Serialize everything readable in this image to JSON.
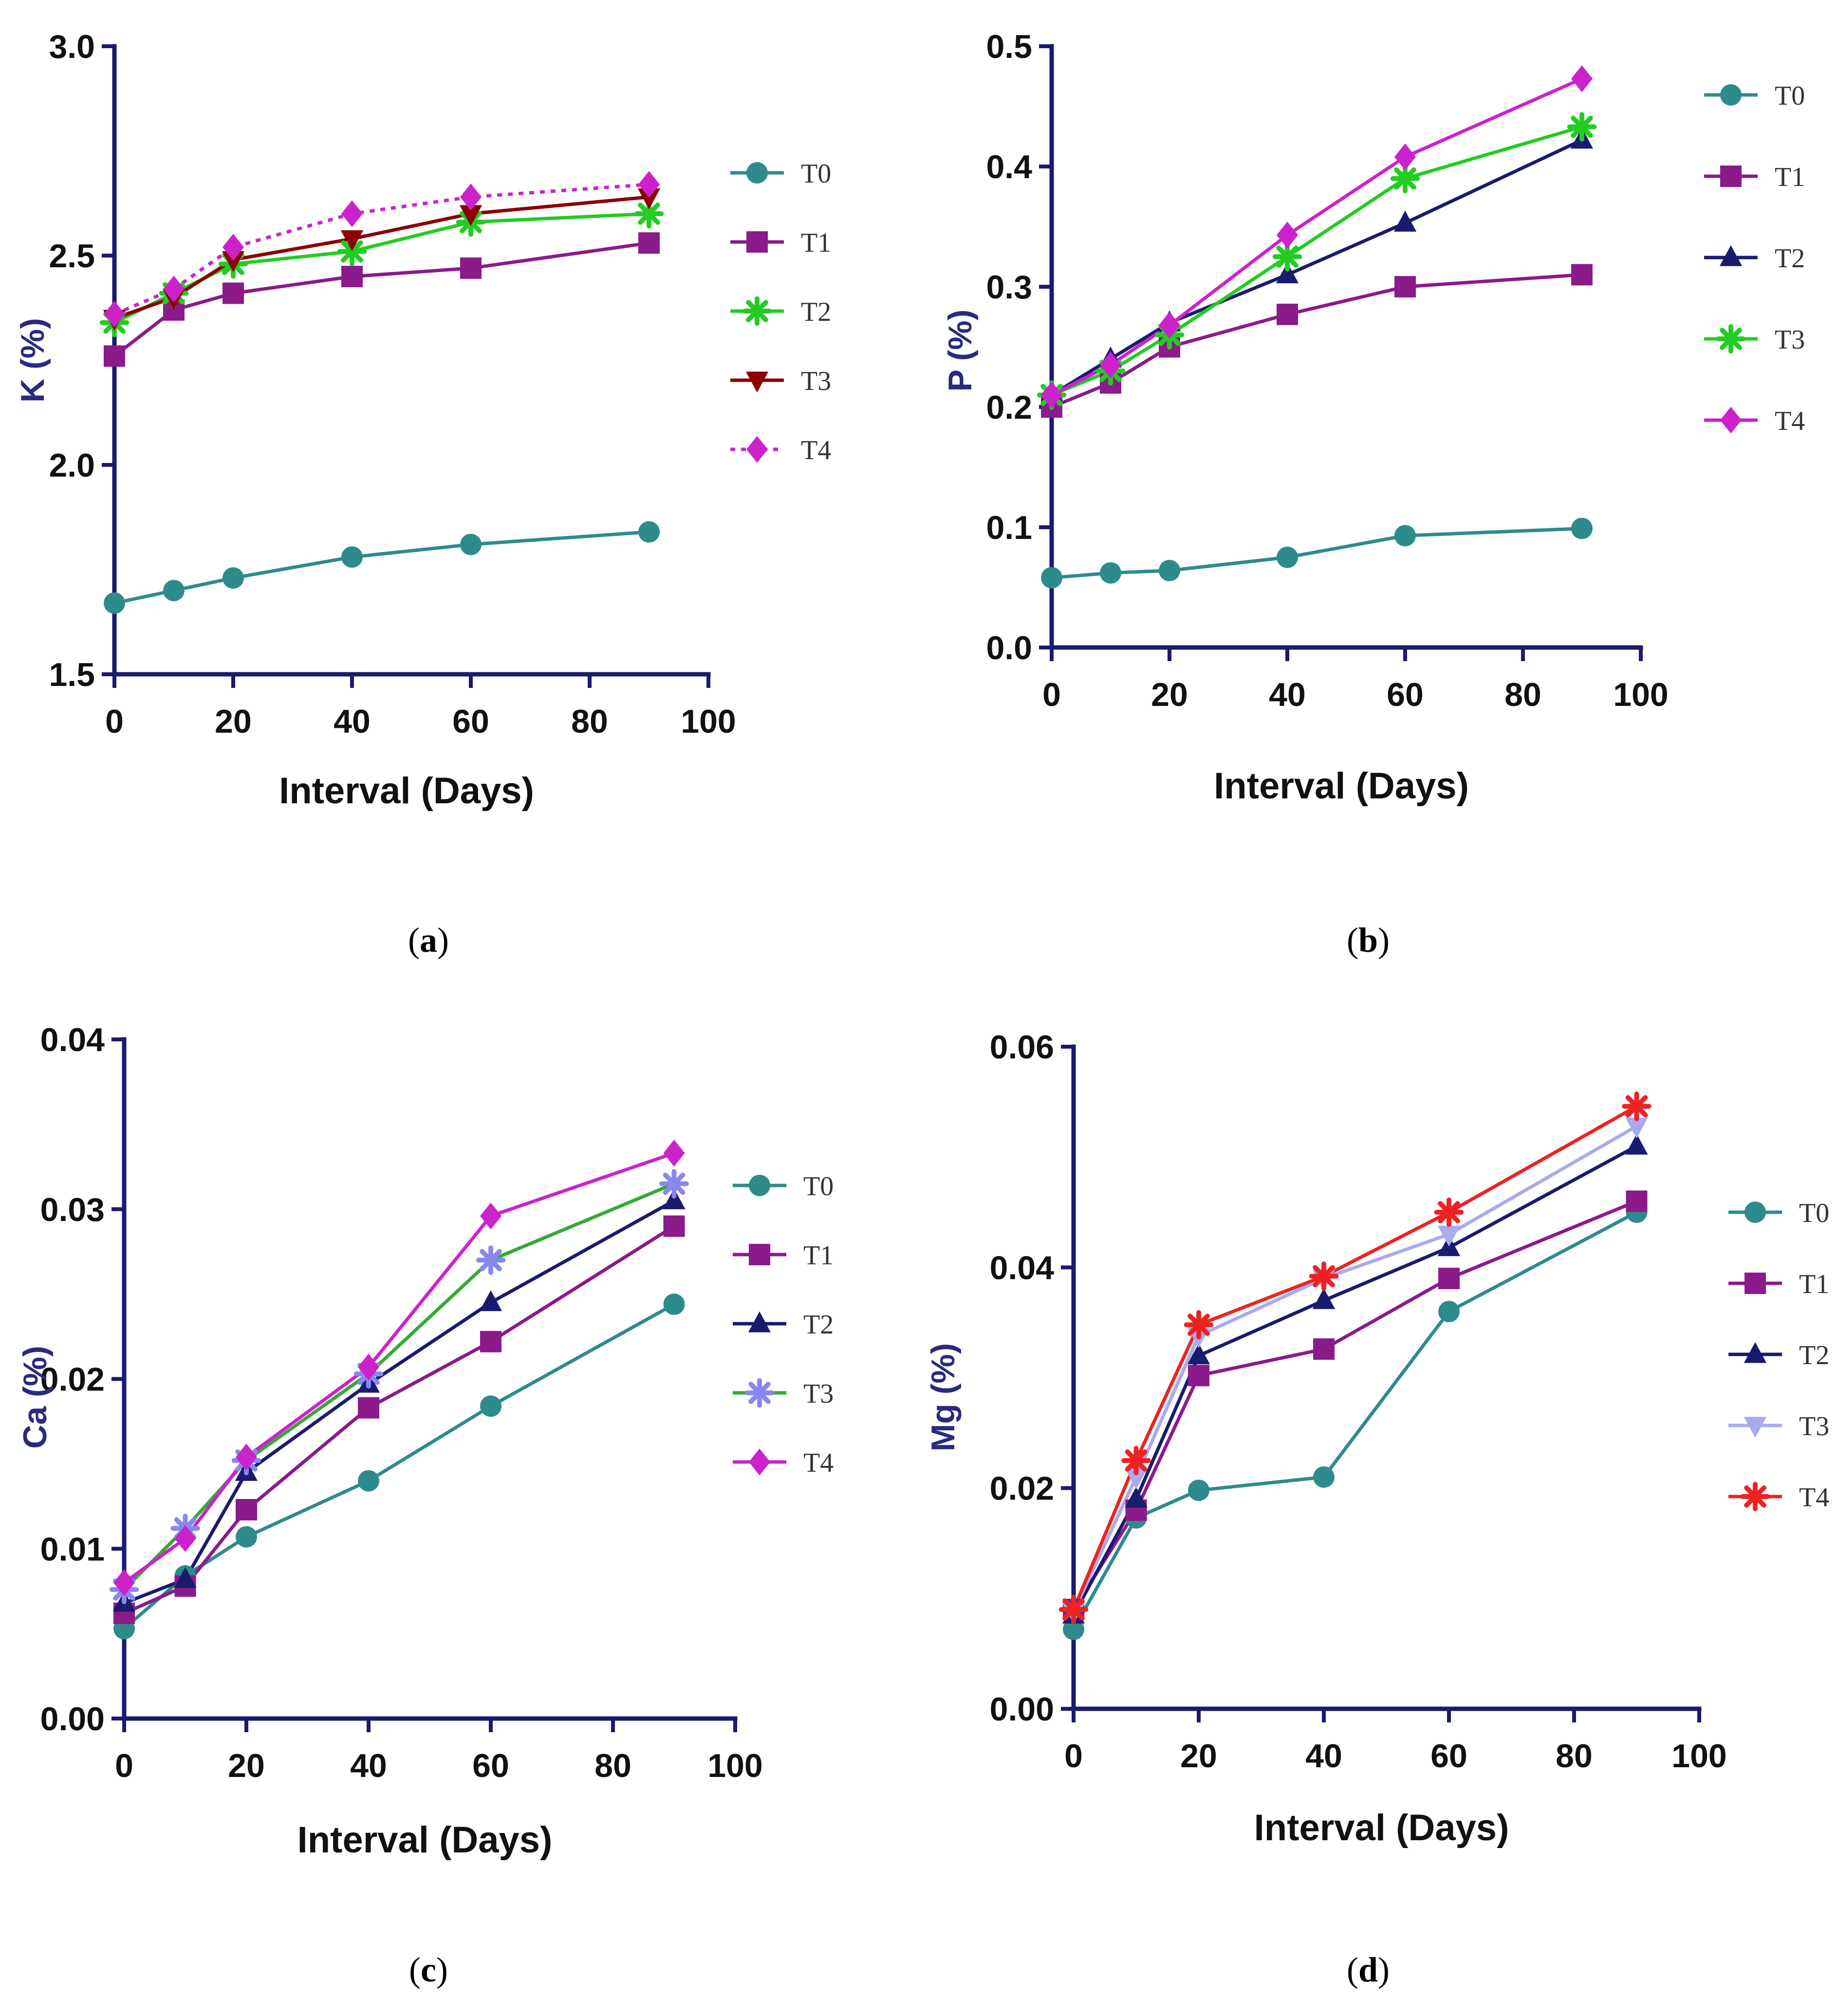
{
  "chart_data": [
    {
      "id": "a",
      "type": "line",
      "caption_letter": "a",
      "xlabel": "Interval (Days)",
      "ylabel": "K (%)",
      "xlim": [
        0,
        100
      ],
      "ylim": [
        1.5,
        3.0
      ],
      "xticks": [
        0,
        20,
        40,
        60,
        80,
        100
      ],
      "yticks": [
        1.5,
        2.0,
        2.5,
        3.0
      ],
      "ytick_labels": [
        "1.5",
        "2.0",
        "2.5",
        "3.0"
      ],
      "x": [
        0,
        10,
        20,
        40,
        60,
        90
      ],
      "legend_position": "right",
      "series": [
        {
          "name": "T0",
          "color": "#2e8b8b",
          "marker": "circle",
          "values": [
            1.67,
            1.7,
            1.73,
            1.78,
            1.81,
            1.84
          ]
        },
        {
          "name": "T1",
          "color": "#8b1a8b",
          "marker": "square",
          "values": [
            2.26,
            2.37,
            2.41,
            2.45,
            2.47,
            2.53
          ]
        },
        {
          "name": "T2",
          "color": "#22cc22",
          "marker": "asterisk",
          "values": [
            2.34,
            2.41,
            2.48,
            2.51,
            2.58,
            2.6
          ]
        },
        {
          "name": "T3",
          "color": "#8b0000",
          "marker": "triangle-down",
          "values": [
            2.35,
            2.4,
            2.49,
            2.54,
            2.6,
            2.64
          ]
        },
        {
          "name": "T4",
          "color": "#cc22cc",
          "marker": "diamond",
          "dashed": true,
          "values": [
            2.36,
            2.42,
            2.52,
            2.6,
            2.64,
            2.67
          ]
        }
      ]
    },
    {
      "id": "b",
      "type": "line",
      "caption_letter": "b",
      "xlabel": "Interval (Days)",
      "ylabel": "P (%)",
      "xlim": [
        0,
        100
      ],
      "ylim": [
        0.0,
        0.5
      ],
      "xticks": [
        0,
        20,
        40,
        60,
        80,
        100
      ],
      "yticks": [
        0.0,
        0.1,
        0.2,
        0.3,
        0.4,
        0.5
      ],
      "ytick_labels": [
        "0.0",
        "0.1",
        "0.2",
        "0.3",
        "0.4",
        "0.5"
      ],
      "x": [
        0,
        10,
        20,
        40,
        60,
        90
      ],
      "legend_position": "right",
      "series": [
        {
          "name": "T0",
          "color": "#2e8b8b",
          "marker": "circle",
          "values": [
            0.058,
            0.062,
            0.064,
            0.075,
            0.093,
            0.099
          ]
        },
        {
          "name": "T1",
          "color": "#8b1a8b",
          "marker": "square",
          "values": [
            0.2,
            0.22,
            0.25,
            0.277,
            0.3,
            0.31
          ]
        },
        {
          "name": "T2",
          "color": "#1a1a6e",
          "marker": "triangle",
          "values": [
            0.21,
            0.24,
            0.27,
            0.31,
            0.353,
            0.422
          ]
        },
        {
          "name": "T3",
          "color": "#22cc22",
          "marker": "asterisk",
          "values": [
            0.21,
            0.23,
            0.26,
            0.325,
            0.39,
            0.433
          ]
        },
        {
          "name": "T4",
          "color": "#cc22cc",
          "marker": "diamond",
          "values": [
            0.21,
            0.235,
            0.268,
            0.343,
            0.408,
            0.473
          ]
        }
      ]
    },
    {
      "id": "c",
      "type": "line",
      "caption_letter": "c",
      "xlabel": "Interval (Days)",
      "ylabel": "Ca (%)",
      "xlim": [
        0,
        100
      ],
      "ylim": [
        0.0,
        0.04
      ],
      "xticks": [
        0,
        20,
        40,
        60,
        80,
        100
      ],
      "yticks": [
        0.0,
        0.01,
        0.02,
        0.03,
        0.04
      ],
      "ytick_labels": [
        "0.00",
        "0.01",
        "0.02",
        "0.03",
        "0.04"
      ],
      "x": [
        0,
        10,
        20,
        40,
        60,
        90
      ],
      "legend_position": "right",
      "series": [
        {
          "name": "T0",
          "color": "#2e8b8b",
          "marker": "circle",
          "values": [
            0.0053,
            0.0084,
            0.0107,
            0.014,
            0.0184,
            0.0244
          ]
        },
        {
          "name": "T1",
          "color": "#8b1a8b",
          "marker": "square",
          "values": [
            0.0062,
            0.0078,
            0.0123,
            0.0183,
            0.0222,
            0.029
          ]
        },
        {
          "name": "T2",
          "color": "#1a1a6e",
          "marker": "triangle",
          "values": [
            0.0068,
            0.0082,
            0.0145,
            0.0197,
            0.0245,
            0.0305
          ]
        },
        {
          "name": "T3",
          "color": "#8888ee",
          "marker": "asterisk",
          "lineColor": "#33aa33",
          "values": [
            0.0076,
            0.0112,
            0.0152,
            0.0203,
            0.027,
            0.0315
          ]
        },
        {
          "name": "T4",
          "color": "#cc22cc",
          "marker": "diamond",
          "values": [
            0.008,
            0.0106,
            0.0154,
            0.0207,
            0.0296,
            0.0333
          ]
        }
      ]
    },
    {
      "id": "d",
      "type": "line",
      "caption_letter": "d",
      "xlabel": "Interval (Days)",
      "ylabel": "Mg (%)",
      "xlim": [
        0,
        100
      ],
      "ylim": [
        0.0,
        0.06
      ],
      "xticks": [
        0,
        20,
        40,
        60,
        80,
        100
      ],
      "yticks": [
        0.0,
        0.02,
        0.04,
        0.06
      ],
      "ytick_labels": [
        "0.00",
        "0.02",
        "0.04",
        "0.06"
      ],
      "x": [
        0,
        10,
        20,
        40,
        60,
        90
      ],
      "legend_position": "right",
      "series": [
        {
          "name": "T0",
          "color": "#2e8b8b",
          "marker": "circle",
          "values": [
            0.0072,
            0.0173,
            0.0198,
            0.021,
            0.036,
            0.045
          ]
        },
        {
          "name": "T1",
          "color": "#8b1a8b",
          "marker": "square",
          "values": [
            0.009,
            0.018,
            0.0302,
            0.0326,
            0.039,
            0.046
          ]
        },
        {
          "name": "T2",
          "color": "#1a1a6e",
          "marker": "triangle",
          "values": [
            0.0085,
            0.019,
            0.032,
            0.037,
            0.0418,
            0.051
          ]
        },
        {
          "name": "T3",
          "color": "#aaaaee",
          "marker": "triangle-down",
          "values": [
            0.0088,
            0.021,
            0.0338,
            0.039,
            0.043,
            0.0528
          ]
        },
        {
          "name": "T4",
          "color": "#ee2222",
          "marker": "asterisk",
          "values": [
            0.009,
            0.0225,
            0.0348,
            0.0392,
            0.045,
            0.0546
          ]
        }
      ]
    }
  ]
}
